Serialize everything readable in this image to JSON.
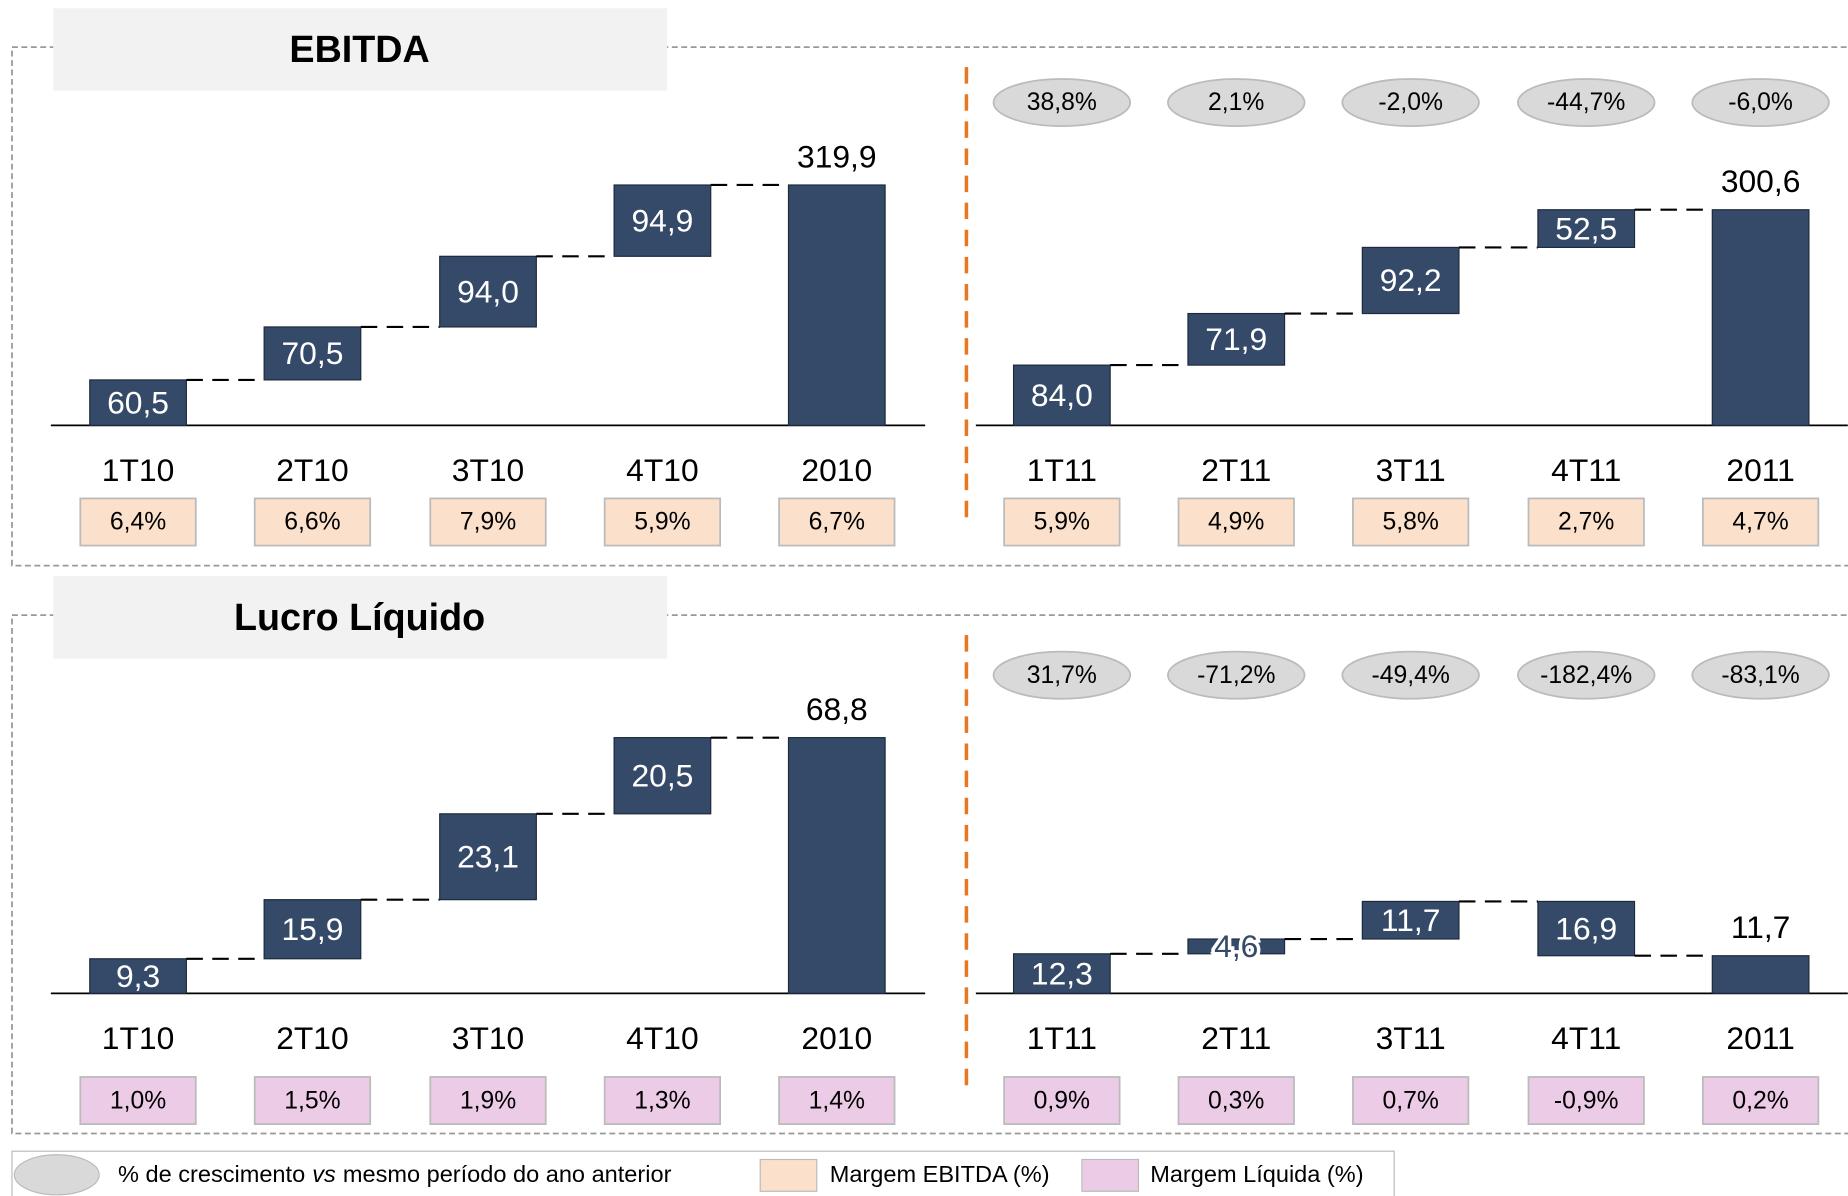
{
  "chart_data": [
    {
      "type": "waterfall",
      "title": "EBITDA",
      "panels": [
        {
          "categories": [
            "1T10",
            "2T10",
            "3T10",
            "4T10",
            "2010"
          ],
          "values": [
            60.5,
            70.5,
            94.0,
            94.9,
            319.9
          ],
          "value_labels": [
            "60,5",
            "70,5",
            "94,0",
            "94,9",
            "319,9"
          ],
          "margins": [
            6.4,
            6.6,
            7.9,
            5.9,
            6.7
          ],
          "margin_labels": [
            "6,4%",
            "6,6%",
            "7,9%",
            "5,9%",
            "6,7%"
          ]
        },
        {
          "categories": [
            "1T11",
            "2T11",
            "3T11",
            "4T11",
            "2011"
          ],
          "values": [
            84.0,
            71.9,
            92.2,
            52.5,
            300.6
          ],
          "value_labels": [
            "84,0",
            "71,9",
            "92,2",
            "52,5",
            "300,6"
          ],
          "growth": [
            38.8,
            2.1,
            -2.0,
            -44.7,
            -6.0
          ],
          "growth_labels": [
            "38,8%",
            "2,1%",
            "-2,0%",
            "-44,7%",
            "-6,0%"
          ],
          "margins": [
            5.9,
            4.9,
            5.8,
            2.7,
            4.7
          ],
          "margin_labels": [
            "5,9%",
            "4,9%",
            "5,8%",
            "2,7%",
            "4,7%"
          ]
        }
      ]
    },
    {
      "type": "waterfall",
      "title": "Lucro Líquido",
      "panels": [
        {
          "categories": [
            "1T10",
            "2T10",
            "3T10",
            "4T10",
            "2010"
          ],
          "values": [
            9.3,
            15.9,
            23.1,
            20.5,
            68.8
          ],
          "value_labels": [
            "9,3",
            "15,9",
            "23,1",
            "20,5",
            "68,8"
          ],
          "margins": [
            1.0,
            1.5,
            1.9,
            1.3,
            1.4
          ],
          "margin_labels": [
            "1,0%",
            "1,5%",
            "1,9%",
            "1,3%",
            "1,4%"
          ]
        },
        {
          "categories": [
            "1T11",
            "2T11",
            "3T11",
            "4T11",
            "2011"
          ],
          "values": [
            12.3,
            4.6,
            11.7,
            -16.9,
            11.7
          ],
          "value_labels": [
            "12,3",
            "4,6",
            "11,7",
            "16,9",
            "11,7"
          ],
          "growth": [
            31.7,
            -71.2,
            -49.4,
            -182.4,
            -83.1
          ],
          "growth_labels": [
            "31,7%",
            "-71,2%",
            "-49,4%",
            "-182,4%",
            "-83,1%"
          ],
          "margins": [
            0.9,
            0.3,
            0.7,
            -0.9,
            0.2
          ],
          "margin_labels": [
            "0,9%",
            "0,3%",
            "0,7%",
            "-0,9%",
            "0,2%"
          ]
        }
      ]
    }
  ],
  "legend": {
    "growth": [
      "% de crescimento",
      "vs",
      "mesmo período do ano anterior"
    ],
    "ebitda_margin": "Margem EBITDA (%)",
    "net_margin": "Margem Líquida (%)"
  }
}
